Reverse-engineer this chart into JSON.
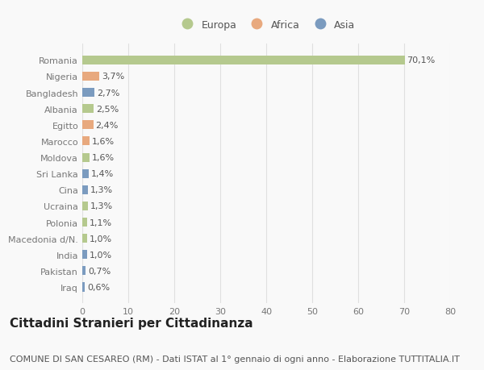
{
  "countries": [
    "Romania",
    "Nigeria",
    "Bangladesh",
    "Albania",
    "Egitto",
    "Marocco",
    "Moldova",
    "Sri Lanka",
    "Cina",
    "Ucraina",
    "Polonia",
    "Macedonia d/N.",
    "India",
    "Pakistan",
    "Iraq"
  ],
  "values": [
    70.1,
    3.7,
    2.7,
    2.5,
    2.4,
    1.6,
    1.6,
    1.4,
    1.3,
    1.3,
    1.1,
    1.0,
    1.0,
    0.7,
    0.6
  ],
  "labels": [
    "70,1%",
    "3,7%",
    "2,7%",
    "2,5%",
    "2,4%",
    "1,6%",
    "1,6%",
    "1,4%",
    "1,3%",
    "1,3%",
    "1,1%",
    "1,0%",
    "1,0%",
    "0,7%",
    "0,6%"
  ],
  "continents": [
    "Europa",
    "Africa",
    "Asia",
    "Europa",
    "Africa",
    "Africa",
    "Europa",
    "Asia",
    "Asia",
    "Europa",
    "Europa",
    "Europa",
    "Asia",
    "Asia",
    "Asia"
  ],
  "colors": {
    "Europa": "#b5c98e",
    "Africa": "#e8a97e",
    "Asia": "#7b9bbf"
  },
  "legend_labels": [
    "Europa",
    "Africa",
    "Asia"
  ],
  "title": "Cittadini Stranieri per Cittadinanza",
  "subtitle": "COMUNE DI SAN CESAREO (RM) - Dati ISTAT al 1° gennaio di ogni anno - Elaborazione TUTTITALIA.IT",
  "xlim": [
    0,
    80
  ],
  "xticks": [
    0,
    10,
    20,
    30,
    40,
    50,
    60,
    70,
    80
  ],
  "background_color": "#f9f9f9",
  "grid_color": "#e0e0e0",
  "bar_height": 0.55,
  "title_fontsize": 11,
  "subtitle_fontsize": 8,
  "label_fontsize": 8,
  "tick_fontsize": 8,
  "legend_fontsize": 9
}
